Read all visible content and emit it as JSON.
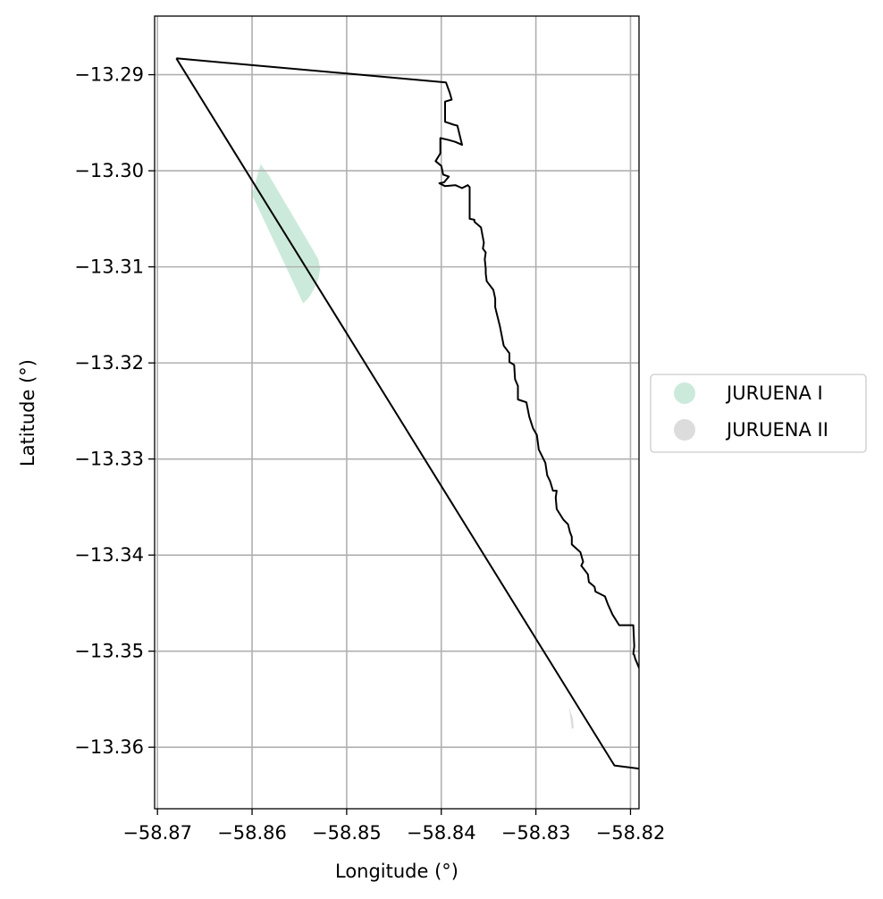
{
  "chart_data": {
    "type": "map",
    "xlabel": "Longitude (°)",
    "ylabel": "Latitude (°)",
    "xlim": [
      -58.8703,
      -58.8191
    ],
    "ylim": [
      -13.3664,
      -13.2839
    ],
    "grid": true,
    "x_ticks": [
      -58.87,
      -58.86,
      -58.85,
      -58.84,
      -58.83,
      -58.82
    ],
    "y_ticks": [
      -13.29,
      -13.3,
      -13.31,
      -13.32,
      -13.33,
      -13.34,
      -13.35,
      -13.36
    ],
    "x_tick_labels": [
      "−58.87",
      "−58.86",
      "−58.85",
      "−58.84",
      "−58.83",
      "−58.82"
    ],
    "y_tick_labels": [
      "−13.29",
      "−13.30",
      "−13.31",
      "−13.32",
      "−13.33",
      "−13.34",
      "−13.35",
      "−13.36"
    ],
    "legend": {
      "placement": "center-right-outside",
      "items": [
        {
          "label": "JURUENA I",
          "color": "#cceadb"
        },
        {
          "label": "JURUENA II",
          "color": "#dcdcdc"
        }
      ]
    },
    "boundary": [
      [
        -58.868,
        -13.2883
      ],
      [
        -58.8395,
        -13.2908
      ],
      [
        -58.8391,
        -13.2919
      ],
      [
        -58.8389,
        -13.2926
      ],
      [
        -58.8396,
        -13.2928
      ],
      [
        -58.8396,
        -13.2949
      ],
      [
        -58.8387,
        -13.2952
      ],
      [
        -58.8383,
        -13.2953
      ],
      [
        -58.8378,
        -13.2973
      ],
      [
        -58.8385,
        -13.297
      ],
      [
        -58.8392,
        -13.2968
      ],
      [
        -58.8401,
        -13.2966
      ],
      [
        -58.8401,
        -13.2982
      ],
      [
        -58.8406,
        -13.299
      ],
      [
        -58.84,
        -13.2995
      ],
      [
        -58.8398,
        -13.3004
      ],
      [
        -58.8392,
        -13.3006
      ],
      [
        -58.8397,
        -13.3012
      ],
      [
        -58.8402,
        -13.3013
      ],
      [
        -58.8396,
        -13.3016
      ],
      [
        -58.8385,
        -13.3015
      ],
      [
        -58.8378,
        -13.3018
      ],
      [
        -58.8372,
        -13.3015
      ],
      [
        -58.837,
        -13.3017
      ],
      [
        -58.837,
        -13.305
      ],
      [
        -58.8365,
        -13.3051
      ],
      [
        -58.8365,
        -13.3053
      ],
      [
        -58.8358,
        -13.3059
      ],
      [
        -58.8355,
        -13.3075
      ],
      [
        -58.8356,
        -13.3081
      ],
      [
        -58.8353,
        -13.3085
      ],
      [
        -58.8354,
        -13.3092
      ],
      [
        -58.8353,
        -13.3102
      ],
      [
        -58.8353,
        -13.3107
      ],
      [
        -58.8352,
        -13.3115
      ],
      [
        -58.8345,
        -13.3124
      ],
      [
        -58.8343,
        -13.3133
      ],
      [
        -58.8343,
        -13.3142
      ],
      [
        -58.8341,
        -13.315
      ],
      [
        -58.8338,
        -13.3162
      ],
      [
        -58.8334,
        -13.3182
      ],
      [
        -58.8328,
        -13.319
      ],
      [
        -58.8328,
        -13.3199
      ],
      [
        -58.8323,
        -13.3202
      ],
      [
        -58.8322,
        -13.3217
      ],
      [
        -58.8319,
        -13.3224
      ],
      [
        -58.8319,
        -13.3238
      ],
      [
        -58.831,
        -13.3241
      ],
      [
        -58.8307,
        -13.3256
      ],
      [
        -58.8303,
        -13.3268
      ],
      [
        -58.8299,
        -13.3275
      ],
      [
        -58.8298,
        -13.3282
      ],
      [
        -58.8297,
        -13.329
      ],
      [
        -58.829,
        -13.3304
      ],
      [
        -58.8288,
        -13.3317
      ],
      [
        -58.8285,
        -13.3323
      ],
      [
        -58.8282,
        -13.3333
      ],
      [
        -58.8278,
        -13.3333
      ],
      [
        -58.8279,
        -13.334
      ],
      [
        -58.8278,
        -13.3352
      ],
      [
        -58.8271,
        -13.3363
      ],
      [
        -58.8266,
        -13.3368
      ],
      [
        -58.8264,
        -13.3376
      ],
      [
        -58.8262,
        -13.3381
      ],
      [
        -58.8262,
        -13.3389
      ],
      [
        -58.8253,
        -13.3397
      ],
      [
        -58.825,
        -13.3407
      ],
      [
        -58.8252,
        -13.3411
      ],
      [
        -58.8245,
        -13.342
      ],
      [
        -58.8244,
        -13.3428
      ],
      [
        -58.8238,
        -13.3433
      ],
      [
        -58.8237,
        -13.3438
      ],
      [
        -58.8227,
        -13.3443
      ],
      [
        -58.8224,
        -13.3451
      ],
      [
        -58.8219,
        -13.3462
      ],
      [
        -58.8212,
        -13.3473
      ],
      [
        -58.8197,
        -13.3473
      ],
      [
        -58.8196,
        -13.3495
      ],
      [
        -58.8197,
        -13.3503
      ],
      [
        -58.8196,
        -13.3504
      ],
      [
        -58.8195,
        -13.3508
      ],
      [
        -58.8179,
        -13.3545
      ],
      [
        -58.8138,
        -13.3629
      ],
      [
        -58.8217,
        -13.3619
      ],
      [
        -58.868,
        -13.2883
      ]
    ],
    "polygons": [
      {
        "name": "JURUENA I",
        "color": "#cceadb",
        "points": [
          [
            -58.86,
            -13.3025
          ],
          [
            -58.8591,
            -13.2993
          ],
          [
            -58.8582,
            -13.3005
          ],
          [
            -58.8573,
            -13.302
          ],
          [
            -58.8564,
            -13.3035
          ],
          [
            -58.8555,
            -13.305
          ],
          [
            -58.8546,
            -13.3065
          ],
          [
            -58.8537,
            -13.308
          ],
          [
            -58.853,
            -13.3092
          ],
          [
            -58.8528,
            -13.3102
          ],
          [
            -58.853,
            -13.3113
          ],
          [
            -58.8535,
            -13.3124
          ],
          [
            -58.854,
            -13.3132
          ],
          [
            -58.8546,
            -13.3138
          ],
          [
            -58.86,
            -13.3025
          ]
        ]
      },
      {
        "name": "JURUENA II",
        "color": "#dcdcdc",
        "points": [
          [
            -58.8265,
            -13.3558
          ],
          [
            -58.8261,
            -13.357
          ],
          [
            -58.826,
            -13.358
          ],
          [
            -58.8262,
            -13.3581
          ],
          [
            -58.8265,
            -13.3558
          ]
        ]
      }
    ]
  }
}
